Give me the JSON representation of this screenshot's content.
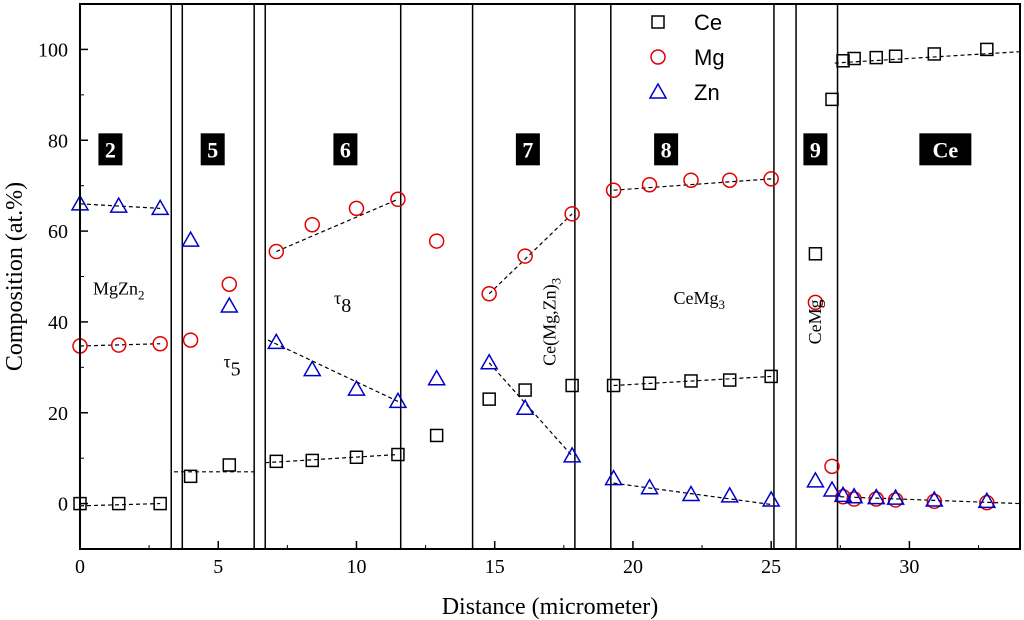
{
  "chart_data": {
    "type": "scatter",
    "title": "",
    "xlabel": "Distance (micrometer)",
    "ylabel": "Composition (at.%)",
    "xlim": [
      0,
      34
    ],
    "ylim": [
      -10,
      110
    ],
    "xticks": [
      0,
      5,
      10,
      15,
      20,
      25,
      30
    ],
    "yticks": [
      0,
      20,
      40,
      60,
      80,
      100
    ],
    "legend_position": "top-center",
    "series": [
      {
        "name": "Ce",
        "marker": "square",
        "color": "#000000",
        "points": [
          [
            0,
            0
          ],
          [
            1.4,
            0
          ],
          [
            2.9,
            0
          ],
          [
            4.0,
            6
          ],
          [
            5.4,
            8.5
          ],
          [
            7.1,
            9.3
          ],
          [
            8.4,
            9.5
          ],
          [
            10.0,
            10.2
          ],
          [
            11.5,
            10.8
          ],
          [
            12.9,
            15
          ],
          [
            14.8,
            23
          ],
          [
            16.1,
            25
          ],
          [
            17.8,
            26
          ],
          [
            19.3,
            26
          ],
          [
            20.6,
            26.5
          ],
          [
            22.1,
            27
          ],
          [
            23.5,
            27.2
          ],
          [
            25.0,
            28
          ],
          [
            26.6,
            55
          ],
          [
            27.2,
            89
          ],
          [
            27.6,
            97.5
          ],
          [
            28.0,
            98
          ],
          [
            28.8,
            98.2
          ],
          [
            29.5,
            98.5
          ],
          [
            30.9,
            99
          ],
          [
            32.8,
            100
          ]
        ]
      },
      {
        "name": "Mg",
        "marker": "circle",
        "color": "#e00000",
        "points": [
          [
            0,
            34.7
          ],
          [
            1.4,
            34.9
          ],
          [
            2.9,
            35.2
          ],
          [
            4.0,
            36
          ],
          [
            5.4,
            48.3
          ],
          [
            7.1,
            55.5
          ],
          [
            8.4,
            61.4
          ],
          [
            10.0,
            65
          ],
          [
            11.5,
            67
          ],
          [
            12.9,
            57.8
          ],
          [
            14.8,
            46.2
          ],
          [
            16.1,
            54.5
          ],
          [
            17.8,
            63.8
          ],
          [
            19.3,
            69
          ],
          [
            20.6,
            70.2
          ],
          [
            22.1,
            71.2
          ],
          [
            23.5,
            71.2
          ],
          [
            25.0,
            71.5
          ],
          [
            26.6,
            44.3
          ],
          [
            27.2,
            8.2
          ],
          [
            27.6,
            1.5
          ],
          [
            28.0,
            1
          ],
          [
            28.8,
            1
          ],
          [
            29.5,
            0.8
          ],
          [
            30.9,
            0.5
          ],
          [
            32.8,
            0.2
          ]
        ]
      },
      {
        "name": "Zn",
        "marker": "triangle",
        "color": "#0000cc",
        "points": [
          [
            0,
            66
          ],
          [
            1.4,
            65.5
          ],
          [
            2.9,
            65
          ],
          [
            4.0,
            58
          ],
          [
            5.4,
            43.5
          ],
          [
            7.1,
            35.5
          ],
          [
            8.4,
            29.5
          ],
          [
            10.0,
            25.2
          ],
          [
            11.5,
            22.5
          ],
          [
            12.9,
            27.5
          ],
          [
            14.8,
            31
          ],
          [
            16.1,
            21
          ],
          [
            17.8,
            10.5
          ],
          [
            19.3,
            5.5
          ],
          [
            20.6,
            3.5
          ],
          [
            22.1,
            2
          ],
          [
            23.5,
            1.7
          ],
          [
            25.0,
            0.8
          ],
          [
            26.6,
            5
          ],
          [
            27.2,
            3
          ],
          [
            27.6,
            1.8
          ],
          [
            28.0,
            1.5
          ],
          [
            28.8,
            1.3
          ],
          [
            29.5,
            1.2
          ],
          [
            30.9,
            0.8
          ],
          [
            32.8,
            0.5
          ]
        ]
      }
    ],
    "trend_lines": [
      [
        [
          0,
          66
        ],
        [
          2.9,
          65
        ]
      ],
      [
        [
          0,
          34.7
        ],
        [
          2.9,
          35.2
        ]
      ],
      [
        [
          0,
          -0.5
        ],
        [
          2.9,
          0
        ]
      ],
      [
        [
          3.4,
          7
        ],
        [
          6.4,
          7
        ]
      ],
      [
        [
          6.7,
          9
        ],
        [
          11.5,
          10.8
        ]
      ],
      [
        [
          7.1,
          55.5
        ],
        [
          11.5,
          67
        ]
      ],
      [
        [
          6.8,
          36
        ],
        [
          11.5,
          22.5
        ]
      ],
      [
        [
          14.8,
          46.2
        ],
        [
          17.8,
          63.8
        ]
      ],
      [
        [
          14.8,
          31
        ],
        [
          17.8,
          10.5
        ]
      ],
      [
        [
          19.3,
          69
        ],
        [
          25.0,
          71.5
        ]
      ],
      [
        [
          19.3,
          26
        ],
        [
          25.0,
          28
        ]
      ],
      [
        [
          19.3,
          4.5
        ],
        [
          25.0,
          -0.2
        ]
      ],
      [
        [
          27.3,
          97
        ],
        [
          34,
          99.5
        ]
      ],
      [
        [
          27.5,
          1.5
        ],
        [
          34,
          0
        ]
      ]
    ],
    "boundaries": [
      3.3,
      3.7,
      6.3,
      6.7,
      11.6,
      14.2,
      17.9,
      19.2,
      25.1,
      25.9,
      27.4
    ],
    "region_labels": [
      {
        "text": "2",
        "x": 1.1,
        "y": 78
      },
      {
        "text": "5",
        "x": 4.8,
        "y": 78
      },
      {
        "text": "6",
        "x": 9.6,
        "y": 78
      },
      {
        "text": "7",
        "x": 16.2,
        "y": 78
      },
      {
        "text": "8",
        "x": 21.2,
        "y": 78
      },
      {
        "text": "9",
        "x": 26.6,
        "y": 78
      },
      {
        "text": "Ce",
        "x": 31.3,
        "y": 78
      }
    ],
    "phase_labels": [
      {
        "text": "MgZn",
        "sub": "2",
        "x": 1.4,
        "y": 46,
        "rotate": false,
        "size": 18
      },
      {
        "text": "τ",
        "sub": "5",
        "x": 5.5,
        "y": 30,
        "rotate": false,
        "size": 28
      },
      {
        "text": "τ",
        "sub": "8",
        "x": 9.5,
        "y": 44,
        "rotate": false,
        "size": 28
      },
      {
        "text": "Ce(Mg,Zn)",
        "sub": "3",
        "x": 17.2,
        "y": 40,
        "rotate": true,
        "size": 18
      },
      {
        "text": "CeMg",
        "sub": "3",
        "x": 22.4,
        "y": 44,
        "rotate": false,
        "size": 18
      },
      {
        "text": "CeMg",
        "sub": "",
        "x": 26.8,
        "y": 40,
        "rotate": true,
        "size": 18
      }
    ]
  }
}
